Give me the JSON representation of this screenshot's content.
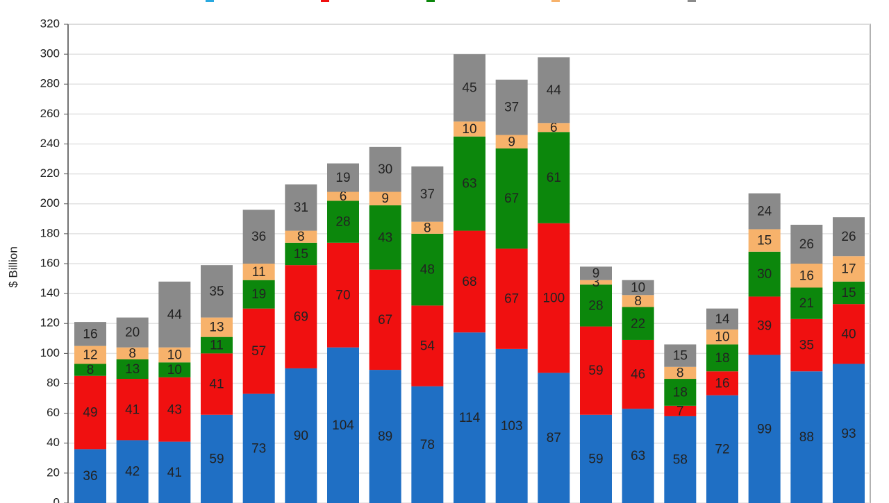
{
  "chart_data": {
    "type": "stacked_bar",
    "y_label": "$ Billion",
    "ylim": [
      0,
      320
    ],
    "yticks": [
      0,
      20,
      40,
      60,
      80,
      100,
      120,
      140,
      160,
      180,
      200,
      220,
      240,
      260,
      280,
      300,
      320
    ],
    "grid": true,
    "series": [
      {
        "color": "#1f6fc4",
        "values": [
          36,
          42,
          41,
          59,
          73,
          90,
          104,
          89,
          78,
          114,
          103,
          87,
          59,
          63,
          58,
          72,
          99,
          88,
          93
        ]
      },
      {
        "color": "#f01010",
        "values": [
          49,
          41,
          43,
          41,
          57,
          69,
          70,
          67,
          54,
          68,
          67,
          100,
          59,
          46,
          7,
          16,
          39,
          35,
          40
        ]
      },
      {
        "color": "#0c870c",
        "values": [
          8,
          13,
          10,
          11,
          19,
          15,
          28,
          43,
          48,
          63,
          67,
          61,
          28,
          22,
          18,
          18,
          30,
          21,
          15
        ]
      },
      {
        "color": "#f7b26b",
        "values": [
          12,
          8,
          10,
          13,
          11,
          8,
          6,
          9,
          8,
          10,
          9,
          6,
          3,
          8,
          8,
          10,
          15,
          16,
          17
        ]
      },
      {
        "color": "#8a8a8a",
        "values": [
          16,
          20,
          44,
          35,
          36,
          31,
          19,
          30,
          37,
          45,
          37,
          44,
          9,
          10,
          15,
          14,
          24,
          26,
          26
        ]
      }
    ]
  }
}
